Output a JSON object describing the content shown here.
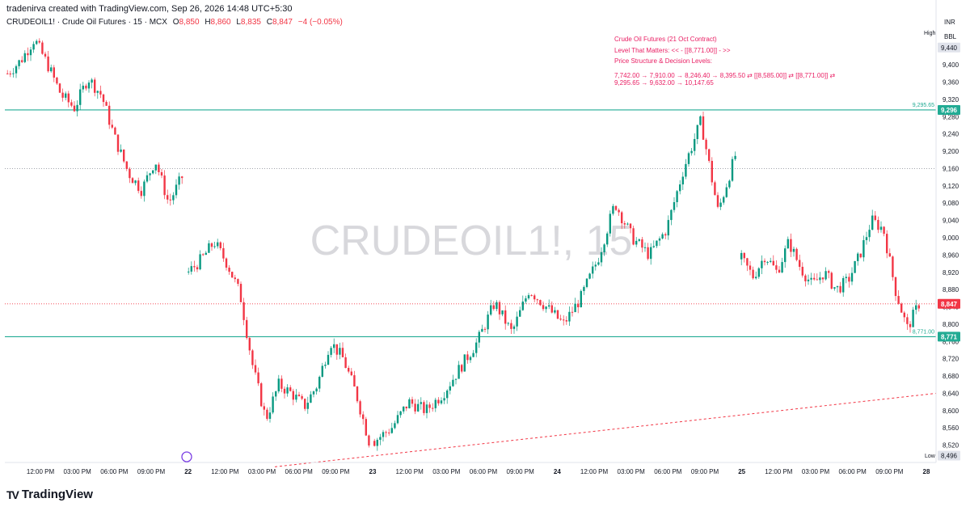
{
  "credit": "tradenirva created with TradingView.com, Sep 26, 2026 14:48 UTC+5:30",
  "symbol": {
    "name": "CRUDEOIL1! · Crude Oil Futures · 15 · MCX",
    "o": "8,850",
    "h": "8,860",
    "l": "8,835",
    "c": "8,847",
    "chg": "−4 (−0.05%)"
  },
  "watermark": "CRUDEOIL1!, 15",
  "currency": "INR",
  "unit": "BBL",
  "high_label": "High",
  "low_label": "Low",
  "annotation": {
    "line1": "Crude Oil Futures (21 Oct Contract)",
    "line2": "Level That Matters: << - [[8,771.00]] - >>",
    "line3": "Price Structure & Decision Levels:",
    "line4": "7,742.00 → 7,910.00 → 8,246.40 → 8,395.50 ⇄ [[8,585.00]] ⇄ [[8,771.00]] ⇄",
    "line5": "9,295.65 → 9,632.00 → 10,147.65"
  },
  "footer_brand": "TradingView",
  "colors": {
    "up": "#089981",
    "down": "#f23645",
    "level": "#22ab94",
    "trend": "#f23645"
  },
  "chart_data": {
    "type": "candlestick",
    "y_range": [
      8480,
      9520
    ],
    "y_ticks": [
      8520,
      8560,
      8600,
      8640,
      8680,
      8720,
      8760,
      8800,
      8840,
      8880,
      8920,
      8960,
      9000,
      9040,
      9080,
      9120,
      9160,
      9200,
      9240,
      9280,
      9320,
      9360,
      9400,
      9440
    ],
    "x_labels": [
      "12:00 PM",
      "03:00 PM",
      "06:00 PM",
      "09:00 PM",
      "22",
      "12:00 PM",
      "03:00 PM",
      "06:00 PM",
      "09:00 PM",
      "23",
      "12:00 PM",
      "03:00 PM",
      "06:00 PM",
      "09:00 PM",
      "24",
      "12:00 PM",
      "03:00 PM",
      "06:00 PM",
      "09:00 PM",
      "25",
      "12:00 PM",
      "03:00 PM",
      "06:00 PM",
      "09:00 PM",
      "28"
    ],
    "levels": [
      {
        "value": 9295.65,
        "text": "9,295.65",
        "tag": "9,296"
      },
      {
        "value": 8771.0,
        "text": "8,771.00",
        "tag": "8,771"
      }
    ],
    "last_price": {
      "value": 8847,
      "tag": "8,847"
    },
    "high_price": {
      "value": 9440,
      "tag": "9,440"
    },
    "low_price": {
      "value": 8496,
      "tag": "8,496"
    },
    "trendline": {
      "from": 8470,
      "to": 8640
    },
    "sessions": [
      {
        "anchors": [
          9380,
          9410,
          9460,
          9400,
          9330,
          9300,
          9370,
          9330,
          9230,
          9150,
          9110,
          9180,
          9080,
          9140
        ]
      },
      {
        "anchors": [
          8920,
          8950,
          8990,
          8940,
          8870,
          8700,
          8580,
          8660,
          8640,
          8610,
          8660,
          8760,
          8720,
          8640,
          8530
        ]
      },
      {
        "anchors": [
          8530,
          8560,
          8620,
          8600,
          8640,
          8700,
          8760,
          8850,
          8780,
          8880,
          8840,
          8800,
          8860,
          8950,
          9080,
          9000,
          8960,
          9020,
          9160,
          9270,
          9060,
          9190
        ]
      },
      {
        "anchors": [
          8950,
          8910,
          8960,
          8920,
          8990,
          8930,
          8890,
          8920,
          8880,
          8900,
          8960,
          9040,
          9020,
          8880,
          8790,
          8847
        ]
      }
    ]
  }
}
